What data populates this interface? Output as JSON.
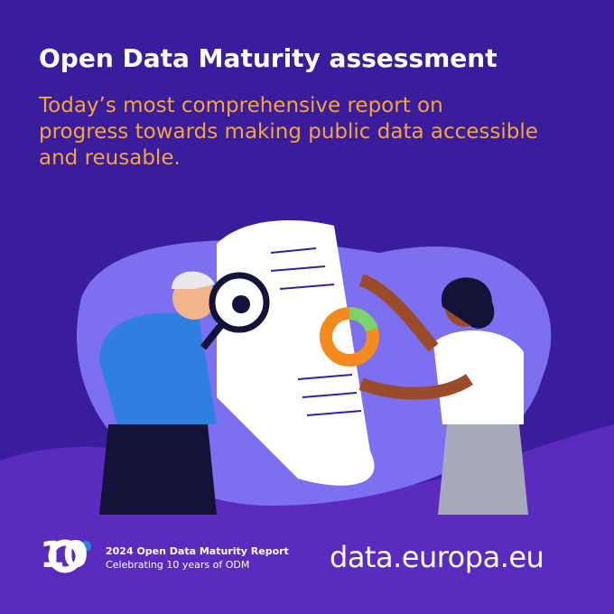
{
  "header": {
    "title": "Open Data Maturity assessment",
    "subtitle_lines": [
      "Today’s most comprehensive report on",
      "progress towards making public data accessible",
      "and reusable."
    ]
  },
  "footer": {
    "badge": "10",
    "report": "2024 Open Data Maturity Report",
    "tagline": "Celebrating 10 years of ODM",
    "brand": "data.europa.eu"
  }
}
